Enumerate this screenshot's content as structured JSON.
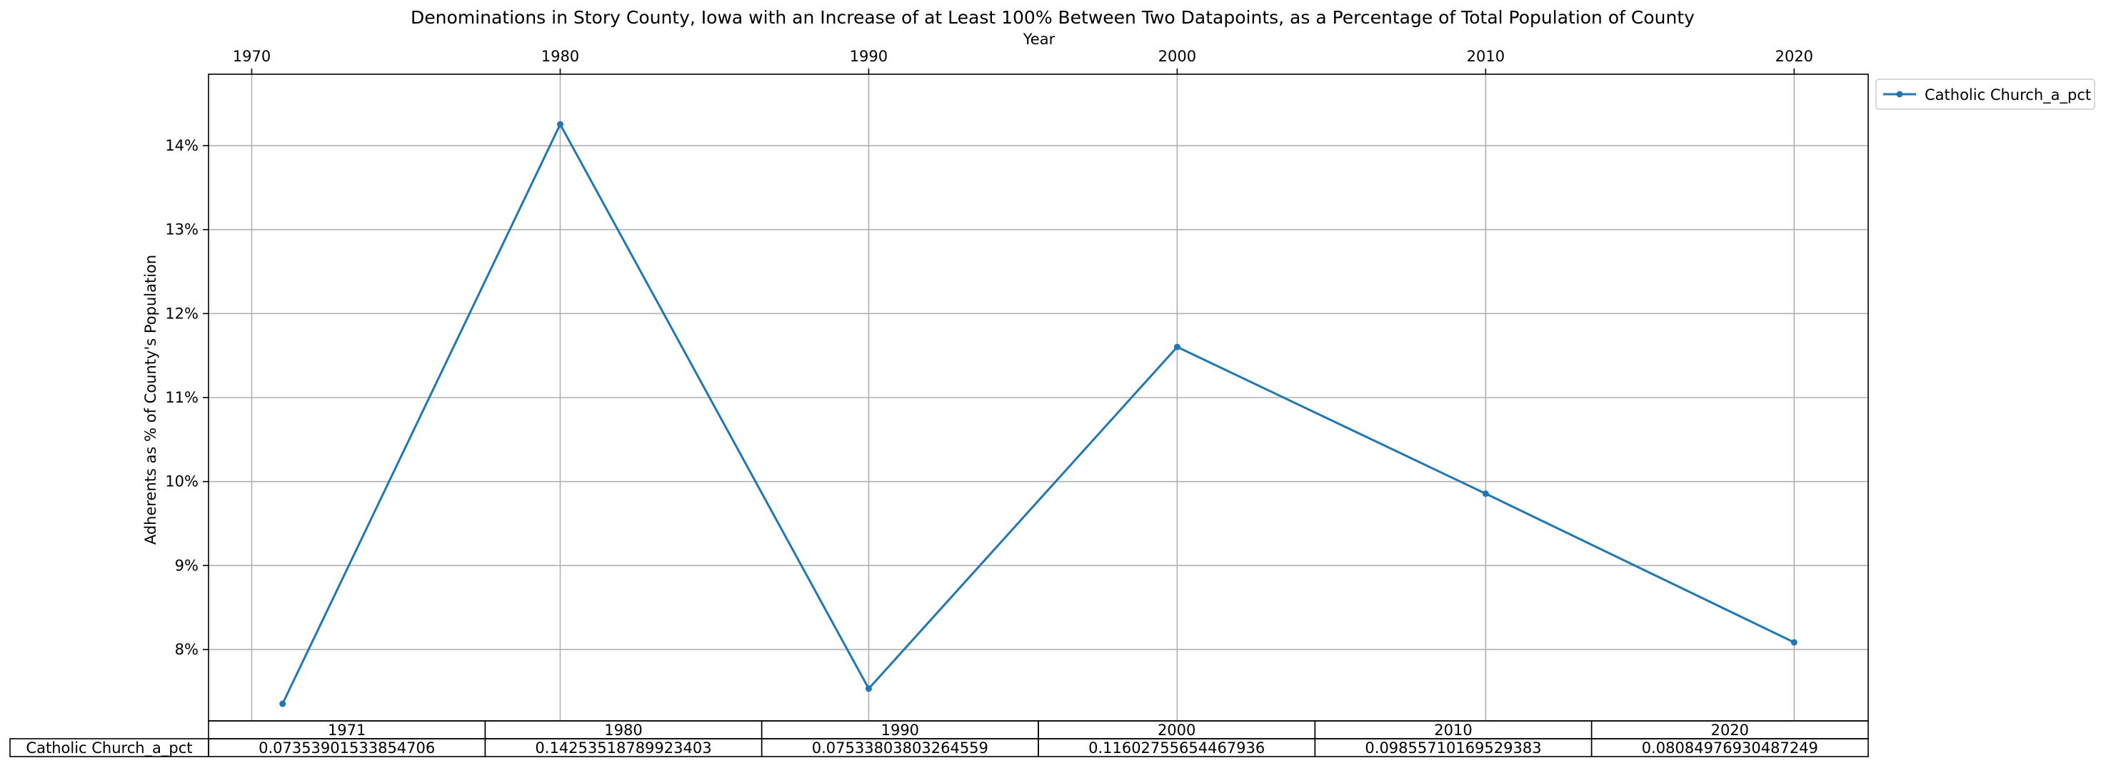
{
  "chart_data": {
    "type": "line",
    "title": "Denominations in Story County, Iowa with an Increase of at Least 100% Between Two Datapoints, as a Percentage of Total Population of County",
    "xlabel": "Year",
    "ylabel": "Adherents as % of County's Population",
    "x_ticks": [
      "1970",
      "1980",
      "1990",
      "2000",
      "2010",
      "2020"
    ],
    "y_ticks": [
      "8%",
      "9%",
      "10%",
      "11%",
      "12%",
      "13%",
      "14%"
    ],
    "xlim": [
      1968.6,
      2022.4
    ],
    "ylim": [
      0.0715,
      0.1485
    ],
    "grid": true,
    "legend_position": "outside-top-right",
    "x": [
      1971,
      1980,
      1990,
      2000,
      2010,
      2020
    ],
    "series": [
      {
        "name": "Catholic Church_a_pct",
        "color": "#1f77b4",
        "values": [
          0.07353901533854706,
          0.14253518789923403,
          0.07533803803264559,
          0.11602755654467936,
          0.09855710169529383,
          0.08084976930487249
        ]
      }
    ],
    "table": {
      "columns": [
        "1971",
        "1980",
        "1990",
        "2000",
        "2010",
        "2020"
      ],
      "row_label": "Catholic Church_a_pct",
      "cells": [
        "0.07353901533854706",
        "0.14253518789923403",
        "0.07533803803264559",
        "0.11602755654467936",
        "0.09855710169529383",
        "0.08084976930487249"
      ]
    }
  }
}
